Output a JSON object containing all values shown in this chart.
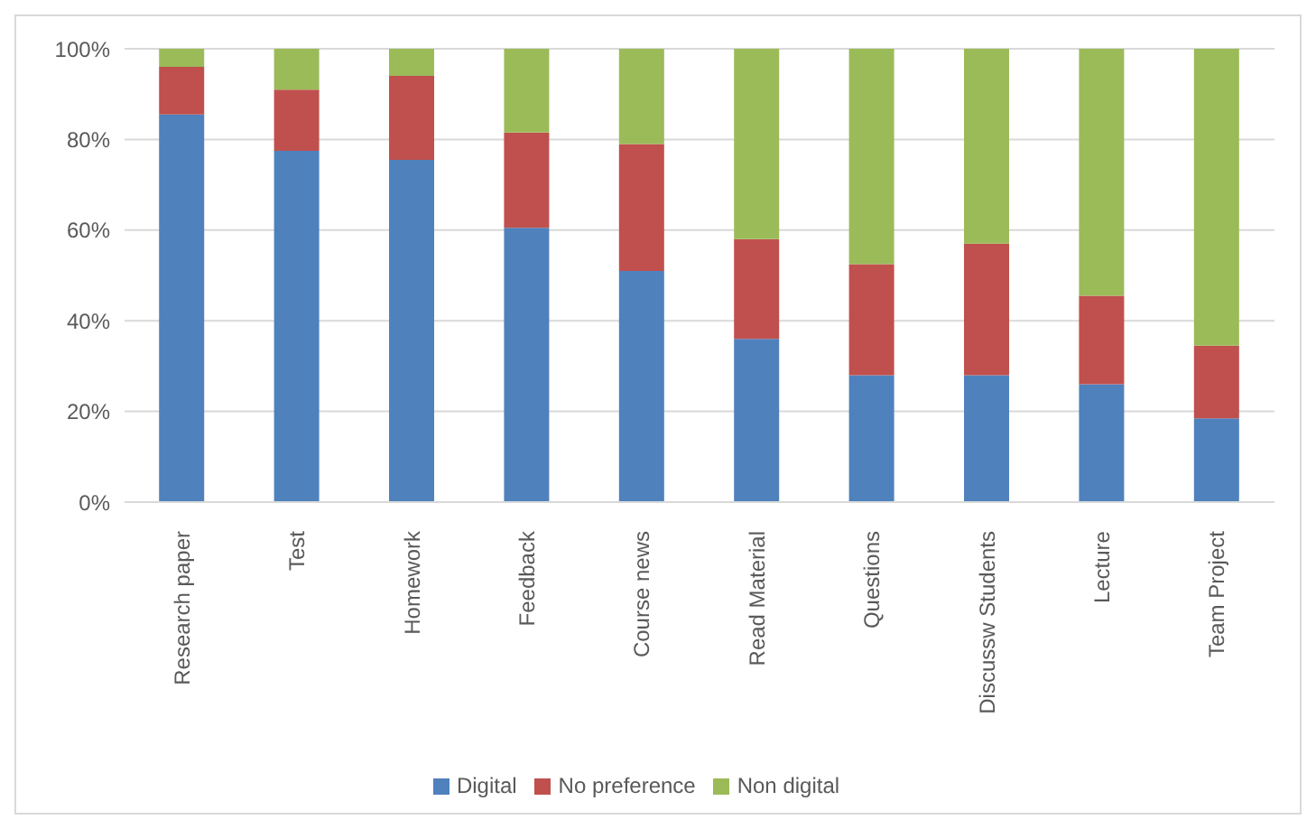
{
  "chart_data": {
    "type": "bar",
    "stacked": true,
    "categories": [
      "Research paper",
      "Test",
      "Homework",
      "Feedback",
      "Course news",
      "Read Material",
      "Questions",
      "Discussw Students",
      "Lecture",
      "Team Project"
    ],
    "series": [
      {
        "name": "Digital",
        "color": "#4f81bd",
        "values": [
          85.5,
          77.5,
          75.5,
          60.5,
          51,
          36,
          28,
          28,
          26,
          18.5
        ]
      },
      {
        "name": "No preference",
        "color": "#c0504d",
        "values": [
          10.5,
          13.5,
          18.5,
          21,
          28,
          22,
          24.5,
          29,
          19.5,
          16
        ]
      },
      {
        "name": "Non digital",
        "color": "#9bbb59",
        "values": [
          4,
          9,
          6,
          18.5,
          21,
          42,
          47.5,
          43,
          54.5,
          65.5
        ]
      }
    ],
    "ylim": [
      0,
      100
    ],
    "yticks": [
      {
        "value": 0,
        "label": "0%"
      },
      {
        "value": 20,
        "label": "20%"
      },
      {
        "value": 40,
        "label": "40%"
      },
      {
        "value": 60,
        "label": "60%"
      },
      {
        "value": 80,
        "label": "80%"
      },
      {
        "value": 100,
        "label": "100%"
      }
    ],
    "grid": "y",
    "legend": "bottom"
  }
}
